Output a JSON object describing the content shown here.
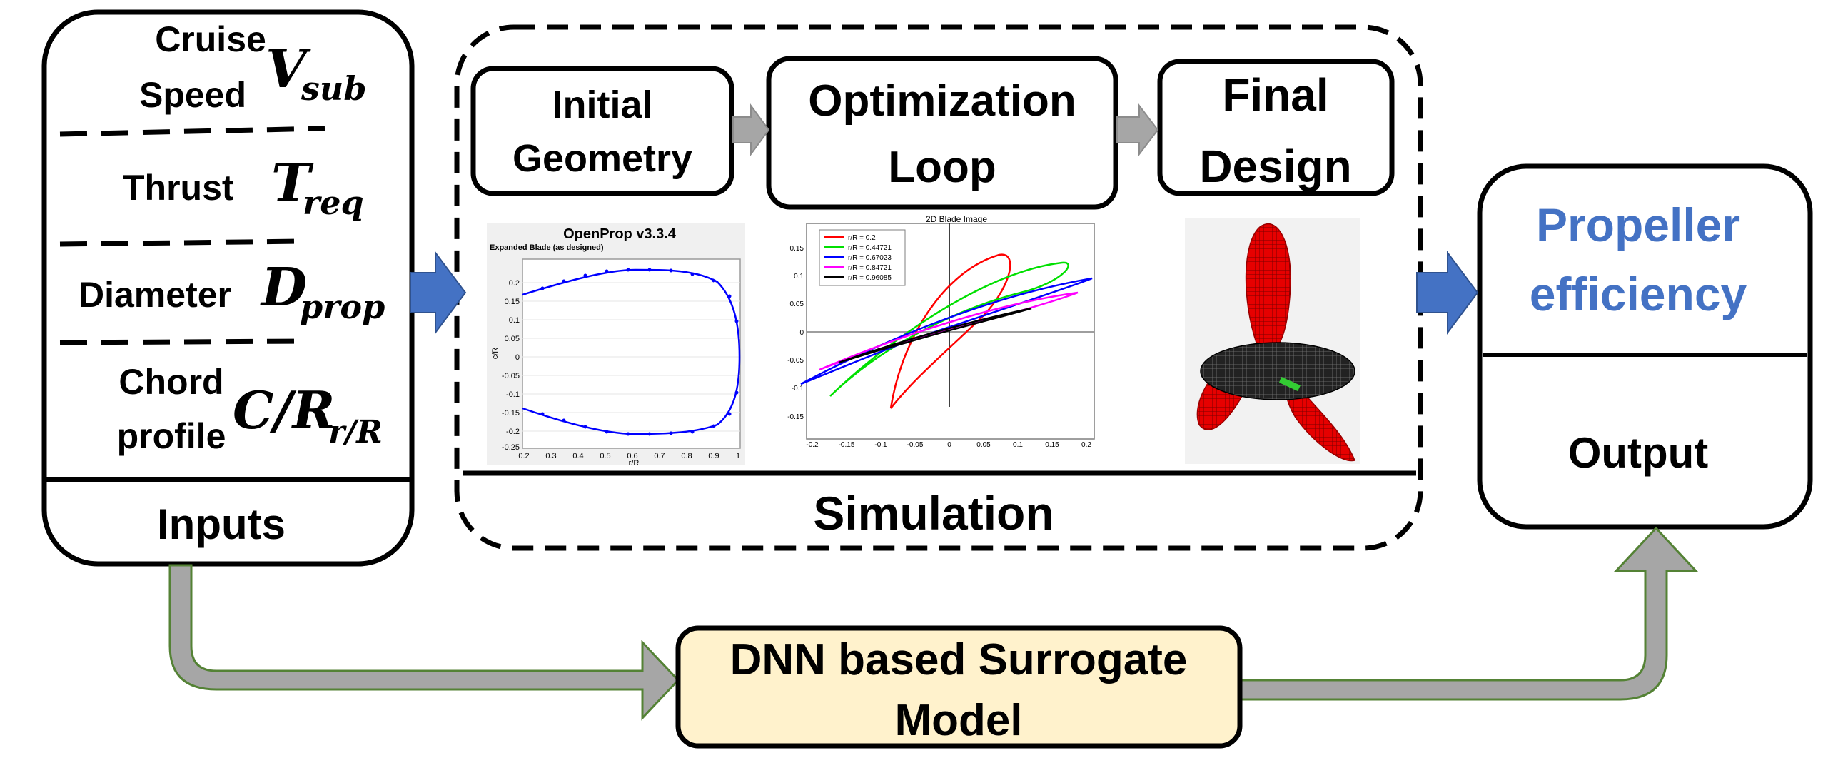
{
  "inputs": {
    "speed_line1": "Cruise",
    "speed_line2": "Speed",
    "speed_symbol": "V",
    "speed_sub": "sub",
    "thrust_label": "Thrust",
    "thrust_symbol": "T",
    "thrust_sub": "req",
    "diameter_label": "Diameter",
    "diameter_symbol": "D",
    "diameter_sub": "prop",
    "chord_line1": "Chord",
    "chord_line2": "profile",
    "chord_symbol": "C/R",
    "chord_sub": "r/R",
    "footer": "Inputs"
  },
  "simulation": {
    "step1_line1": "Initial",
    "step1_line2": "Geometry",
    "step2_line1": "Optimization",
    "step2_line2": "Loop",
    "step3_line1": "Final",
    "step3_line2": "Design",
    "footer": "Simulation",
    "openprop_title": "OpenProp v3.3.4",
    "openprop_subtitle": "Expanded Blade (as designed)",
    "openprop_ylabel": "c/R",
    "openprop_xlabel": "r/R",
    "openprop_yticks": [
      "0.2",
      "0.15",
      "0.1",
      "0.05",
      "0",
      "-0.05",
      "-0.1",
      "-0.15",
      "-0.2",
      "-0.25"
    ],
    "openprop_xticks": [
      "0.2",
      "0.3",
      "0.4",
      "0.5",
      "0.6",
      "0.7",
      "0.8",
      "0.9",
      "1"
    ],
    "blade2d_title": "2D Blade Image",
    "blade2d_legend": [
      "r/R = 0.2",
      "r/R = 0.44721",
      "r/R = 0.67023",
      "r/R = 0.84721",
      "r/R = 0.96085"
    ],
    "blade2d_yticks": [
      "0.15",
      "0.1",
      "0.05",
      "0",
      "-0.05",
      "-0.1",
      "-0.15"
    ],
    "blade2d_xticks": [
      "-0.2",
      "-0.15",
      "-0.1",
      "-0.05",
      "0",
      "0.05",
      "0.1",
      "0.15",
      "0.2"
    ]
  },
  "output": {
    "title_line1": "Propeller",
    "title_line2": "efficiency",
    "footer": "Output"
  },
  "surrogate": {
    "line1": "DNN based Surrogate",
    "line2": "Model"
  },
  "colors": {
    "accent_blue": "#4472c4",
    "arrow_gray": "#a6a6a6",
    "arrow_green_border": "#548235",
    "surrogate_fill": "#fff2cc",
    "curve_red": "#ff0000",
    "curve_green": "#00e000",
    "curve_blue": "#0000ff",
    "curve_magenta": "#ff00ff",
    "curve_black": "#000000"
  }
}
